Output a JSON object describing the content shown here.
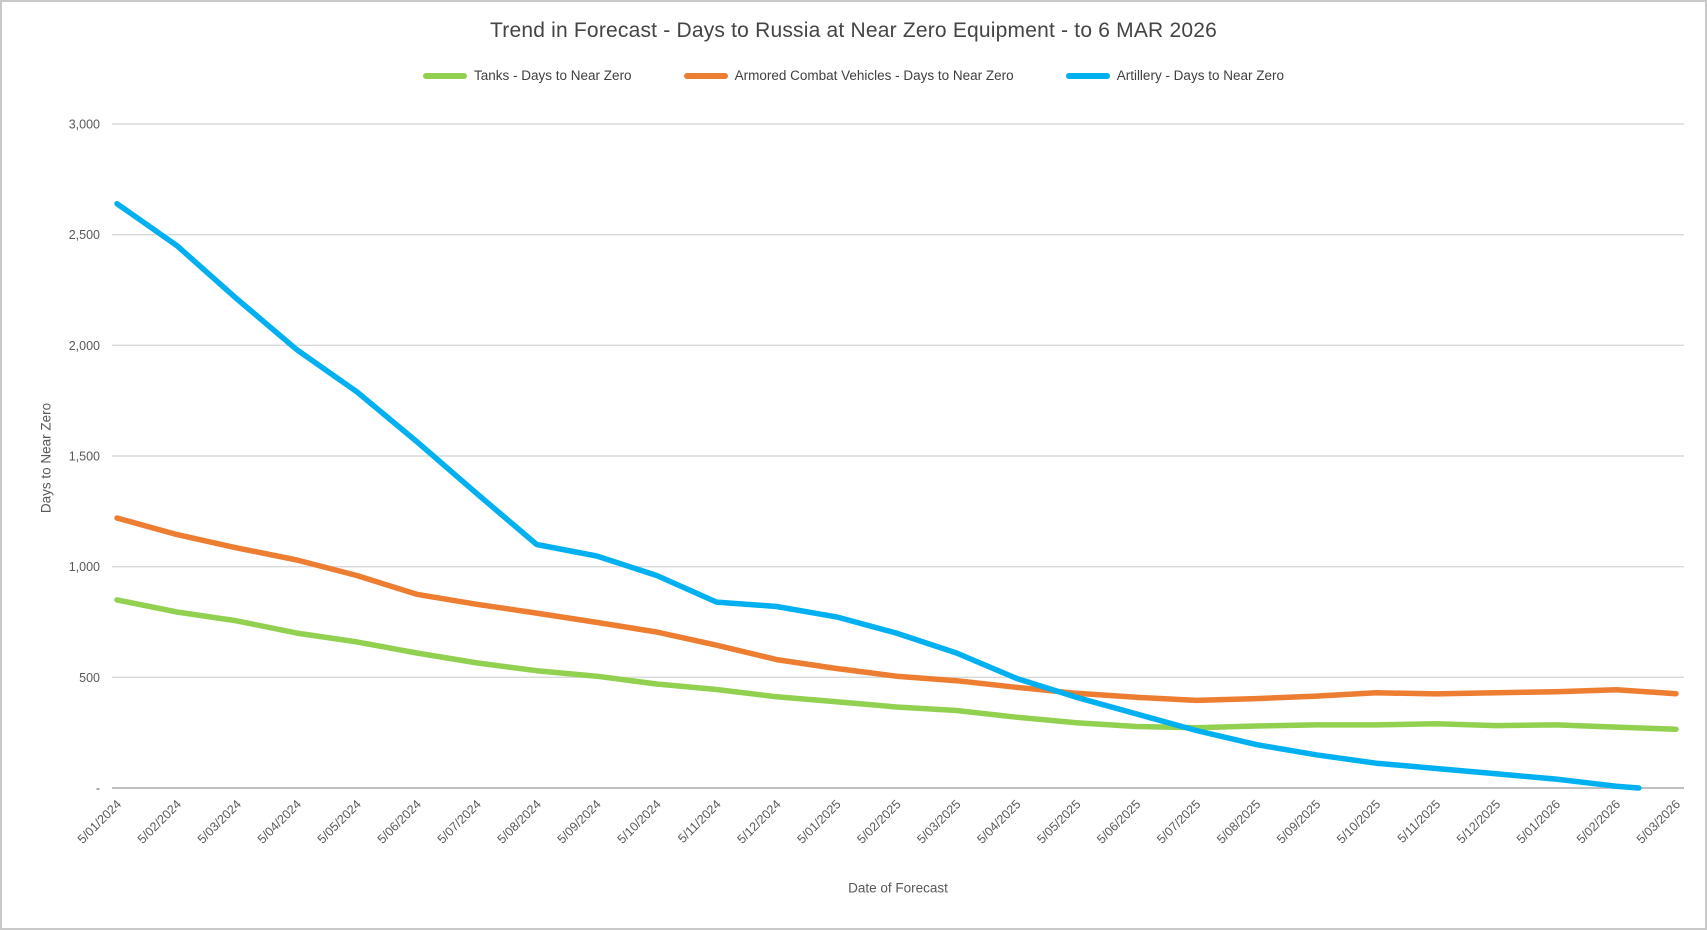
{
  "window": {
    "background": "#ffffff",
    "border_color": "#c9c9c9",
    "gridline_color": "#d9d9d9",
    "axis_line_color": "#c0c0c0",
    "text_color": "#595959"
  },
  "chart_data": {
    "type": "line",
    "title": "Trend in Forecast - Days to Russia at Near Zero Equipment - to 6 MAR 2026",
    "xlabel": "Date of Forecast",
    "ylabel": "Days to Near Zero",
    "ylim": [
      0,
      3000
    ],
    "grid": "horizontal",
    "legend_position": "top-center",
    "x_tick_rotation_deg": 45,
    "y_ticks": [
      {
        "value": 3000,
        "label": "3,000"
      },
      {
        "value": 2500,
        "label": "2,500"
      },
      {
        "value": 2000,
        "label": "2,000"
      },
      {
        "value": 1500,
        "label": "1,500"
      },
      {
        "value": 1000,
        "label": "1,000"
      },
      {
        "value": 500,
        "label": "500"
      },
      {
        "value": 0,
        "label": "-"
      }
    ],
    "categories": [
      "5/01/2024",
      "5/02/2024",
      "5/03/2024",
      "5/04/2024",
      "5/05/2024",
      "5/06/2024",
      "5/07/2024",
      "5/08/2024",
      "5/09/2024",
      "5/10/2024",
      "5/11/2024",
      "5/12/2024",
      "5/01/2025",
      "5/02/2025",
      "5/03/2025",
      "5/04/2025",
      "5/05/2025",
      "5/06/2025",
      "5/07/2025",
      "5/08/2025",
      "5/09/2025",
      "5/10/2025",
      "5/11/2025",
      "5/12/2025",
      "5/01/2026",
      "5/02/2026",
      "5/03/2026"
    ],
    "series": [
      {
        "name": "Tanks - Days to Near Zero",
        "color": "#92D050",
        "values": [
          850,
          795,
          755,
          700,
          660,
          610,
          565,
          530,
          505,
          470,
          445,
          412,
          390,
          366,
          350,
          320,
          295,
          278,
          272,
          280,
          285,
          285,
          290,
          282,
          285,
          275,
          265
        ]
      },
      {
        "name": "Armored Combat Vehicles - Days to Near Zero",
        "color": "#ED7D31",
        "values": [
          1220,
          1145,
          1085,
          1030,
          960,
          875,
          830,
          790,
          748,
          705,
          645,
          580,
          540,
          505,
          485,
          455,
          428,
          410,
          396,
          404,
          415,
          430,
          425,
          430,
          435,
          444,
          426
        ]
      },
      {
        "name": "Artillery - Days to Near Zero",
        "color": "#00B0F0",
        "values": [
          2640,
          2450,
          2210,
          1980,
          1790,
          1565,
          1330,
          1100,
          1048,
          960,
          840,
          820,
          773,
          700,
          610,
          495,
          410,
          335,
          260,
          196,
          150,
          112,
          88,
          64,
          40,
          8,
          null
        ],
        "end_extension": {
          "x_index": 25.38,
          "value": 0
        }
      }
    ]
  }
}
